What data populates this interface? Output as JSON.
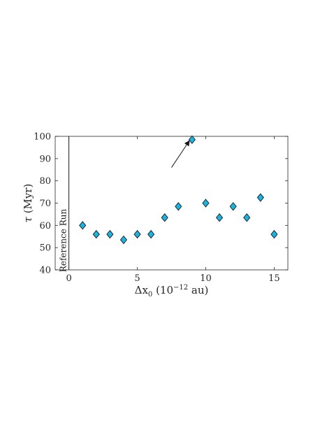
{
  "chart_data": {
    "type": "scatter",
    "title": "",
    "xlabel": {
      "main": "Δx",
      "sub": "0",
      "unit_open": " (10",
      "unit_sup": "−12",
      "unit_close": " au)"
    },
    "ylabel": {
      "main": "τ",
      "unit": " (Myr)"
    },
    "xlim": [
      -1,
      16
    ],
    "ylim": [
      40,
      100
    ],
    "xticks": [
      "0",
      "5",
      "10",
      "15"
    ],
    "yticks": [
      "40",
      "50",
      "60",
      "70",
      "80",
      "90",
      "100"
    ],
    "grid": false,
    "marker": "diamond",
    "marker_color": "#1bb3e0",
    "marker_edge": "#1a1a1a",
    "x": [
      1,
      2,
      3,
      4,
      5,
      6,
      7,
      8,
      9,
      10,
      11,
      12,
      13,
      14,
      15
    ],
    "y": [
      60,
      56,
      56,
      53.5,
      56,
      56,
      63.5,
      68.5,
      98.5,
      70,
      63.5,
      68.5,
      63.5,
      72.5,
      56
    ],
    "reference_line_x": 0,
    "reference_label": "Reference Run",
    "arrow": {
      "from": [
        7.5,
        86
      ],
      "to": [
        8.8,
        98
      ]
    }
  }
}
